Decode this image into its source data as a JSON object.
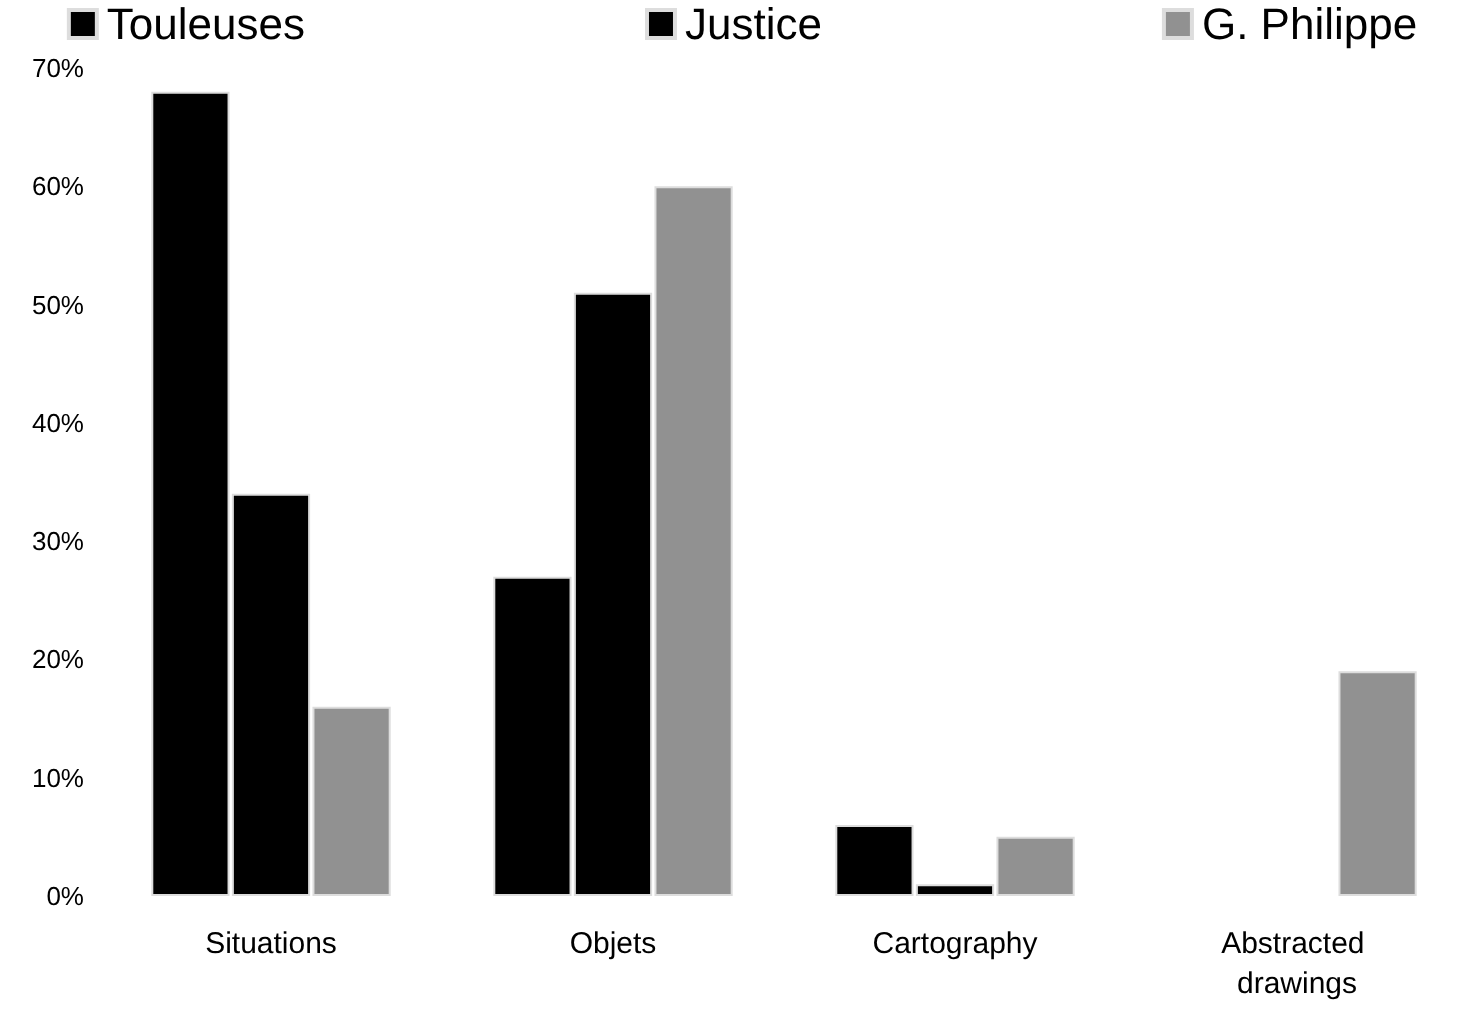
{
  "chart_data": {
    "type": "bar",
    "categories": [
      "Situations",
      "Objets",
      "Cartography",
      "Abstracted drawings"
    ],
    "series": [
      {
        "name": "Touleuses",
        "color": "#000000",
        "values": [
          68,
          27,
          6,
          null
        ]
      },
      {
        "name": "Justice",
        "color": "#000000",
        "values": [
          34,
          51,
          1,
          null
        ]
      },
      {
        "name": "G. Philippe",
        "color": "#919191",
        "values": [
          16,
          60,
          5,
          19
        ]
      }
    ],
    "ylim": [
      0,
      70
    ],
    "yticks": [
      {
        "value": 0,
        "label": "0%"
      },
      {
        "value": 10,
        "label": "10%"
      },
      {
        "value": 20,
        "label": "20%"
      },
      {
        "value": 30,
        "label": "30%"
      },
      {
        "value": 40,
        "label": "40%"
      },
      {
        "value": 50,
        "label": "50%"
      },
      {
        "value": 60,
        "label": "60%"
      },
      {
        "value": 70,
        "label": "70%"
      }
    ],
    "grid": false,
    "legend": "top"
  }
}
